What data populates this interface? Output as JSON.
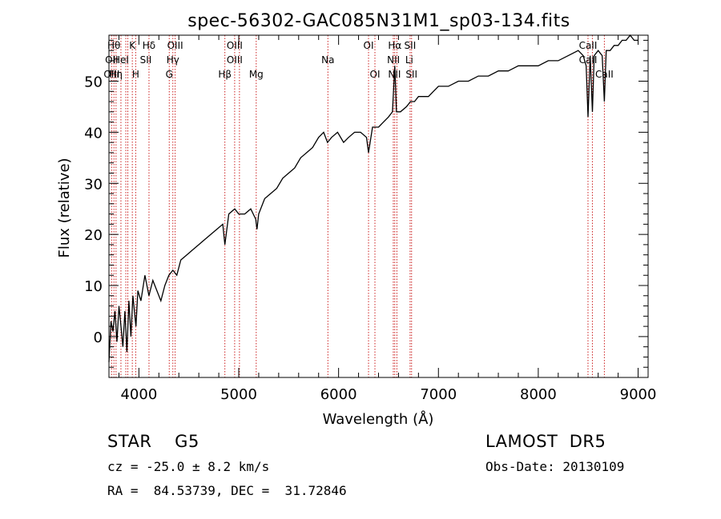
{
  "chart_data": {
    "type": "line",
    "title": "spec-56302-GAC085N31M1_sp03-134.fits",
    "xlabel": "Wavelength (Å)",
    "ylabel": "Flux (relative)",
    "xlim": [
      3700,
      9100
    ],
    "ylim": [
      -8,
      59
    ],
    "x_ticks": [
      4000,
      5000,
      6000,
      7000,
      8000,
      9000
    ],
    "y_ticks": [
      0,
      10,
      20,
      30,
      40,
      50
    ],
    "grid": false,
    "series": [
      {
        "x": [
          3700,
          3720,
          3740,
          3760,
          3780,
          3800,
          3820,
          3840,
          3860,
          3880,
          3900,
          3920,
          3940,
          3960,
          3970,
          3990,
          4020,
          4060,
          4100,
          4140,
          4180,
          4220,
          4260,
          4300,
          4340,
          4380,
          4420,
          4480,
          4540,
          4600,
          4660,
          4720,
          4780,
          4840,
          4861,
          4900,
          4960,
          5000,
          5060,
          5120,
          5170,
          5183,
          5200,
          5260,
          5320,
          5380,
          5440,
          5500,
          5560,
          5620,
          5680,
          5740,
          5800,
          5850,
          5889,
          5930,
          5990,
          6050,
          6100,
          6160,
          6220,
          6280,
          6300,
          6340,
          6400,
          6450,
          6500,
          6540,
          6563,
          6580,
          6620,
          6680,
          6720,
          6760,
          6800,
          6850,
          6900,
          6950,
          7000,
          7100,
          7200,
          7300,
          7400,
          7500,
          7600,
          7700,
          7800,
          7900,
          8000,
          8100,
          8200,
          8300,
          8400,
          8450,
          8480,
          8498,
          8520,
          8542,
          8560,
          8600,
          8640,
          8662,
          8680,
          8720,
          8760,
          8800,
          8840,
          8880,
          8920,
          8960,
          9000
        ],
        "values": [
          -5,
          3,
          1,
          5,
          -1,
          6,
          2,
          -2,
          5,
          -3,
          7,
          0,
          8,
          4,
          2,
          9,
          7,
          12,
          8,
          11,
          9,
          7,
          10,
          12,
          13,
          12,
          15,
          16,
          17,
          18,
          19,
          20,
          21,
          22,
          18,
          24,
          25,
          24,
          24,
          25,
          23,
          21,
          24,
          27,
          28,
          29,
          31,
          32,
          33,
          35,
          36,
          37,
          39,
          40,
          38,
          39,
          40,
          38,
          39,
          40,
          40,
          39,
          36,
          41,
          41,
          42,
          43,
          44,
          53,
          44,
          44,
          45,
          46,
          46,
          47,
          47,
          47,
          48,
          49,
          49,
          50,
          50,
          51,
          51,
          52,
          52,
          53,
          53,
          53,
          54,
          54,
          55,
          56,
          55,
          53,
          43,
          55,
          44,
          55,
          56,
          55,
          46,
          56,
          56,
          57,
          57,
          58,
          58,
          59,
          58,
          58
        ]
      }
    ],
    "line_labels": [
      {
        "w": 3750,
        "tier": 0,
        "text": "Hθ"
      },
      {
        "w": 3727,
        "tier": 1,
        "text": "OII"
      },
      {
        "w": 3727,
        "tier": 2,
        "text": "OIII"
      },
      {
        "w": 3770,
        "tier": 2,
        "text": "Hη"
      },
      {
        "w": 3820,
        "tier": 1,
        "text": "HeI"
      },
      {
        "w": 3934,
        "tier": 0,
        "text": "K"
      },
      {
        "w": 3968,
        "tier": 2,
        "text": "H"
      },
      {
        "w": 4101,
        "tier": 0,
        "text": "Hδ"
      },
      {
        "w": 4069,
        "tier": 1,
        "text": "SII"
      },
      {
        "w": 4363,
        "tier": 0,
        "text": "OIII"
      },
      {
        "w": 4340,
        "tier": 1,
        "text": "Hγ"
      },
      {
        "w": 4304,
        "tier": 2,
        "text": "G"
      },
      {
        "w": 4959,
        "tier": 0,
        "text": "OIII"
      },
      {
        "w": 4959,
        "tier": 1,
        "text": "OIII"
      },
      {
        "w": 4861,
        "tier": 2,
        "text": "Hβ"
      },
      {
        "w": 5175,
        "tier": 2,
        "text": "Mg"
      },
      {
        "w": 5893,
        "tier": 1,
        "text": "Na"
      },
      {
        "w": 6300,
        "tier": 0,
        "text": "OI"
      },
      {
        "w": 6364,
        "tier": 2,
        "text": "OI"
      },
      {
        "w": 6563,
        "tier": 0,
        "text": "Hα"
      },
      {
        "w": 6550,
        "tier": 1,
        "text": "NII"
      },
      {
        "w": 6560,
        "tier": 2,
        "text": "NII"
      },
      {
        "w": 6716,
        "tier": 0,
        "text": "SII"
      },
      {
        "w": 6708,
        "tier": 1,
        "text": "Li"
      },
      {
        "w": 6731,
        "tier": 2,
        "text": "SII"
      },
      {
        "w": 8498,
        "tier": 0,
        "text": "CaII"
      },
      {
        "w": 8498,
        "tier": 1,
        "text": "CaII"
      },
      {
        "w": 8662,
        "tier": 2,
        "text": "CaII"
      }
    ],
    "reference_lines": [
      3727,
      3750,
      3771,
      3820,
      3869,
      3889,
      3934,
      3968,
      4101,
      4304,
      4340,
      4363,
      4861,
      4959,
      5007,
      5175,
      5893,
      6300,
      6364,
      6548,
      6563,
      6584,
      6716,
      6731,
      8498,
      8542,
      8662
    ],
    "colors": {
      "spectrum": "#000000",
      "reference": "#cc2222",
      "axis": "#000000"
    }
  },
  "annotations": {
    "object_line": "STAR    G5",
    "survey": "LAMOST  DR5",
    "velocity": "cz = -25.0 ± 8.2 km/s",
    "obs_date": "Obs-Date: 20130109",
    "coords": "RA =  84.53739, DEC =  31.72846"
  }
}
